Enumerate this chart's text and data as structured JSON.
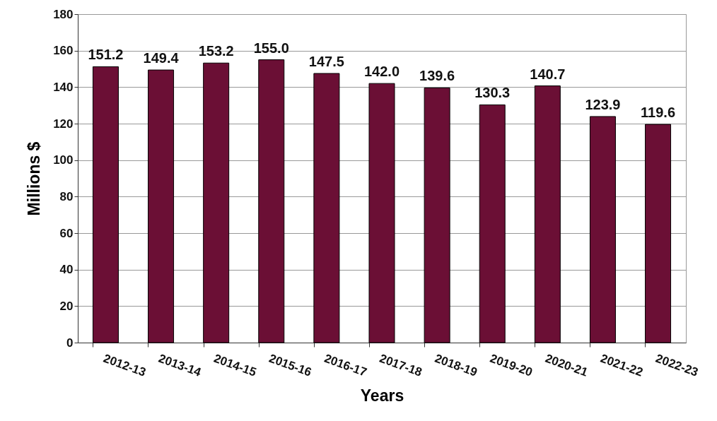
{
  "chart_data": {
    "type": "bar",
    "xlabel": "Years",
    "ylabel": "Millions $",
    "categories": [
      "2012-13",
      "2013-14",
      "2014-15",
      "2015-16",
      "2016-17",
      "2017-18",
      "2018-19",
      "2019-20",
      "2020-21",
      "2021-22",
      "2022-23"
    ],
    "values": [
      151.2,
      149.4,
      153.2,
      155.0,
      147.5,
      142.0,
      139.6,
      130.3,
      140.7,
      123.9,
      119.6
    ],
    "value_labels": [
      "151.2",
      "149.4",
      "153.2",
      "155.0",
      "147.5",
      "142.0",
      "139.6",
      "130.3",
      "140.7",
      "123.9",
      "119.6"
    ],
    "color": "#6b0f35",
    "ylim": [
      0,
      180
    ],
    "yticks": [
      0,
      20,
      40,
      60,
      80,
      100,
      120,
      140,
      160,
      180
    ],
    "grid": "y"
  }
}
